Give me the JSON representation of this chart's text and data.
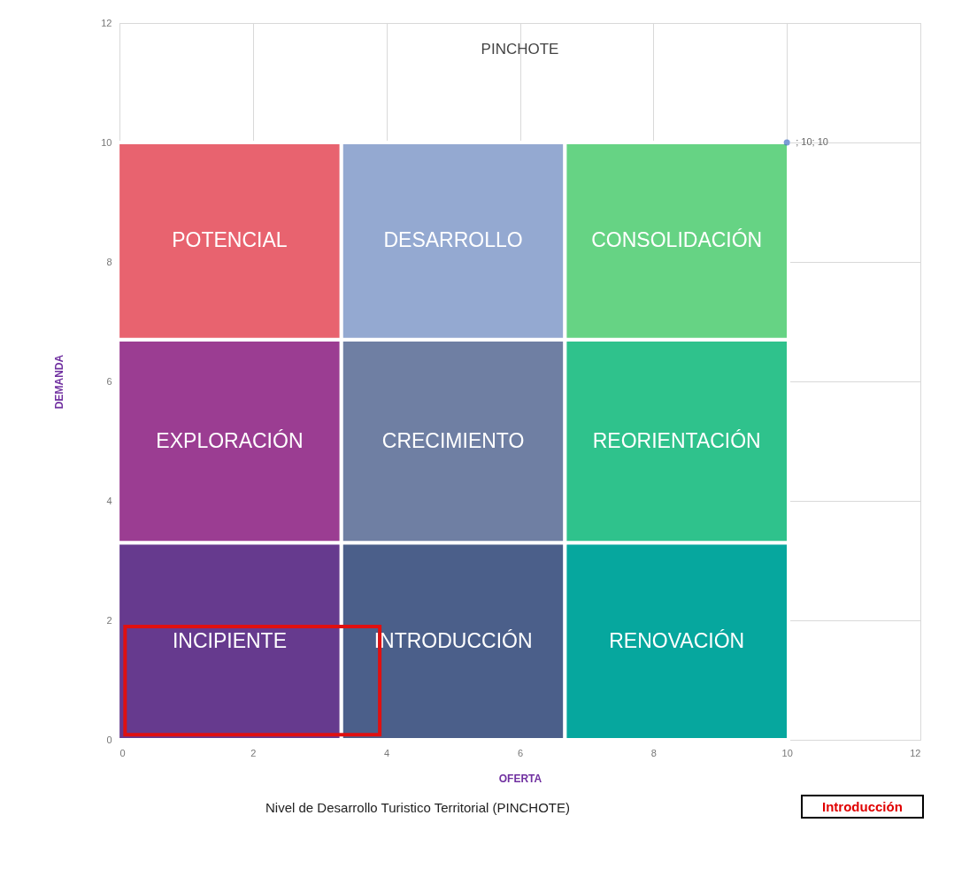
{
  "chart_data": {
    "type": "bar",
    "stacked": true,
    "title": "PINCHOTE",
    "xlabel": "OFERTA",
    "ylabel": "DEMANDA",
    "xlim": [
      0,
      12
    ],
    "ylim": [
      0,
      12
    ],
    "xticks": [
      0,
      2,
      4,
      6,
      8,
      10,
      12
    ],
    "yticks": [
      0,
      2,
      4,
      6,
      8,
      10,
      12
    ],
    "grid": true,
    "marker": "circle",
    "x": [
      1.65,
      5,
      8.35
    ],
    "series": [
      {
        "colors": [
          "#663a8e",
          "#4b5f8a",
          "#06a79e"
        ],
        "values": [
          3.3,
          3.3,
          3.3
        ],
        "value_labels": [
          "INCIPIENTE",
          "INTRODUCCIÓN",
          "RENOVACIÓN"
        ]
      },
      {
        "colors": [
          "#9b3d92",
          "#6f7fa3",
          "#2fc28c"
        ],
        "values": [
          3.4,
          3.4,
          3.4
        ],
        "value_labels": [
          "EXPLORACIÓN",
          "CRECIMIENTO",
          "REORIENTACIÓN"
        ]
      },
      {
        "colors": [
          "#e8636f",
          "#94a9d1",
          "#66d384"
        ],
        "values": [
          3.3,
          3.3,
          3.3
        ],
        "value_labels": [
          "POTENCIAL",
          "DESARROLLO",
          "CONSOLIDACIÓN"
        ]
      },
      {
        "type": "scatter",
        "color": "#4472c4",
        "x": [
          10
        ],
        "values": [
          10
        ],
        "value_labels": [
          "; 10; 10"
        ]
      }
    ],
    "annotations": [
      "Nivel de Desarrollo Turistico Territorial (PINCHOTE)",
      "Introducción"
    ]
  }
}
